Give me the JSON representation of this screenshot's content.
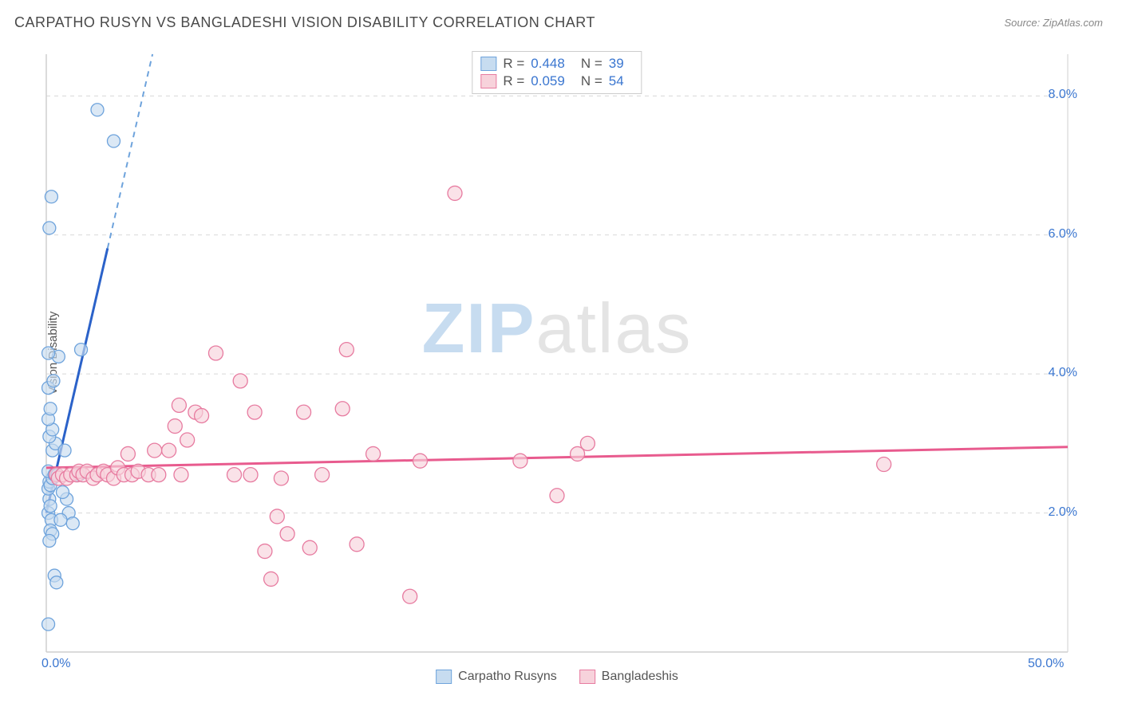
{
  "header": {
    "title": "CARPATHO RUSYN VS BANGLADESHI VISION DISABILITY CORRELATION CHART",
    "source": "Source: ZipAtlas.com"
  },
  "watermark": {
    "part1": "ZIP",
    "part2": "atlas"
  },
  "y_axis_label": "Vision Disability",
  "chart": {
    "type": "scatter",
    "background_color": "#ffffff",
    "grid_color": "#d8d8d8",
    "axis_color": "#cfcfcf",
    "xlim": [
      0,
      50
    ],
    "ylim": [
      0,
      8.6
    ],
    "x_ticks": [
      {
        "v": 0,
        "label": "0.0%"
      },
      {
        "v": 50,
        "label": "50.0%"
      }
    ],
    "y_ticks": [
      {
        "v": 2,
        "label": "2.0%"
      },
      {
        "v": 4,
        "label": "4.0%"
      },
      {
        "v": 6,
        "label": "6.0%"
      },
      {
        "v": 8,
        "label": "8.0%"
      }
    ],
    "series": [
      {
        "name": "Carpatho Rusyns",
        "marker_fill": "#c7dcf0",
        "marker_stroke": "#6ea3dc",
        "line_color": "#2b62c9",
        "line_dash_color": "#6ea3dc",
        "r_label": "R =",
        "r_value": "0.448",
        "n_label": "N =",
        "n_value": "39",
        "regression": {
          "x1": 0,
          "y1": 2.0,
          "x2": 5.2,
          "y2": 8.6,
          "dash_from_x": 3.0
        },
        "marker_radius": 8,
        "points": [
          [
            0.1,
            2.0
          ],
          [
            0.15,
            2.2
          ],
          [
            0.2,
            2.1
          ],
          [
            0.25,
            1.9
          ],
          [
            0.2,
            1.75
          ],
          [
            0.3,
            1.7
          ],
          [
            0.15,
            1.6
          ],
          [
            0.4,
            1.1
          ],
          [
            0.5,
            1.0
          ],
          [
            0.1,
            0.4
          ],
          [
            0.1,
            2.35
          ],
          [
            0.15,
            2.45
          ],
          [
            0.2,
            2.4
          ],
          [
            0.3,
            2.5
          ],
          [
            0.1,
            2.6
          ],
          [
            0.4,
            2.55
          ],
          [
            0.55,
            2.55
          ],
          [
            0.3,
            2.9
          ],
          [
            0.45,
            3.0
          ],
          [
            0.15,
            3.1
          ],
          [
            0.3,
            3.2
          ],
          [
            0.1,
            3.35
          ],
          [
            0.2,
            3.5
          ],
          [
            0.1,
            3.8
          ],
          [
            0.35,
            3.9
          ],
          [
            0.6,
            4.25
          ],
          [
            0.1,
            4.3
          ],
          [
            0.15,
            6.1
          ],
          [
            0.25,
            6.55
          ],
          [
            1.0,
            2.2
          ],
          [
            1.1,
            2.0
          ],
          [
            1.3,
            1.85
          ],
          [
            1.6,
            2.55
          ],
          [
            1.7,
            4.35
          ],
          [
            2.5,
            7.8
          ],
          [
            3.3,
            7.35
          ],
          [
            0.7,
            1.9
          ],
          [
            0.8,
            2.3
          ],
          [
            0.9,
            2.9
          ]
        ]
      },
      {
        "name": "Bangladeshis",
        "marker_fill": "#f7d2db",
        "marker_stroke": "#e77ba0",
        "line_color": "#e85b8e",
        "r_label": "R =",
        "r_value": "0.059",
        "n_label": "N =",
        "n_value": "54",
        "regression": {
          "x1": 0,
          "y1": 2.65,
          "x2": 50,
          "y2": 2.95
        },
        "marker_radius": 9,
        "points": [
          [
            0.5,
            2.55
          ],
          [
            0.6,
            2.5
          ],
          [
            0.8,
            2.55
          ],
          [
            1.0,
            2.5
          ],
          [
            1.2,
            2.55
          ],
          [
            1.5,
            2.55
          ],
          [
            1.6,
            2.6
          ],
          [
            1.8,
            2.55
          ],
          [
            2.0,
            2.6
          ],
          [
            2.3,
            2.5
          ],
          [
            2.5,
            2.55
          ],
          [
            2.8,
            2.6
          ],
          [
            3.0,
            2.55
          ],
          [
            3.3,
            2.5
          ],
          [
            3.5,
            2.65
          ],
          [
            3.8,
            2.55
          ],
          [
            4.0,
            2.85
          ],
          [
            4.2,
            2.55
          ],
          [
            4.5,
            2.6
          ],
          [
            5.0,
            2.55
          ],
          [
            5.3,
            2.9
          ],
          [
            5.5,
            2.55
          ],
          [
            6.0,
            2.9
          ],
          [
            6.3,
            3.25
          ],
          [
            6.6,
            2.55
          ],
          [
            6.9,
            3.05
          ],
          [
            7.3,
            3.45
          ],
          [
            7.6,
            3.4
          ],
          [
            8.3,
            4.3
          ],
          [
            9.2,
            2.55
          ],
          [
            9.5,
            3.9
          ],
          [
            10.0,
            2.55
          ],
          [
            10.2,
            3.45
          ],
          [
            10.7,
            1.45
          ],
          [
            11.0,
            1.05
          ],
          [
            11.3,
            1.95
          ],
          [
            11.5,
            2.5
          ],
          [
            11.8,
            1.7
          ],
          [
            12.6,
            3.45
          ],
          [
            12.9,
            1.5
          ],
          [
            13.5,
            2.55
          ],
          [
            14.5,
            3.5
          ],
          [
            14.7,
            4.35
          ],
          [
            15.2,
            1.55
          ],
          [
            16.0,
            2.85
          ],
          [
            17.8,
            0.8
          ],
          [
            18.3,
            2.75
          ],
          [
            20.0,
            6.6
          ],
          [
            23.2,
            2.75
          ],
          [
            25.0,
            2.25
          ],
          [
            26.0,
            2.85
          ],
          [
            26.5,
            3.0
          ],
          [
            41.0,
            2.7
          ],
          [
            6.5,
            3.55
          ]
        ]
      }
    ]
  },
  "legend_bottom": [
    {
      "label": "Carpatho Rusyns",
      "fill": "#c7dcf0",
      "stroke": "#6ea3dc"
    },
    {
      "label": "Bangladeshis",
      "fill": "#f7d2db",
      "stroke": "#e77ba0"
    }
  ]
}
